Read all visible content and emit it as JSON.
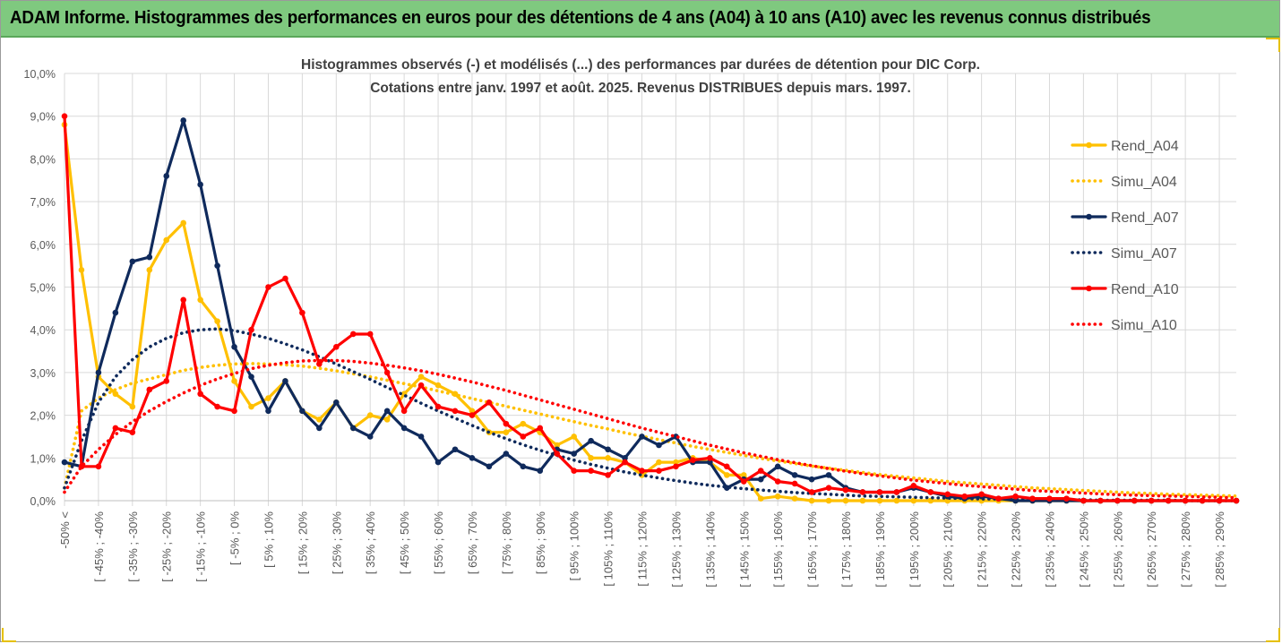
{
  "window": {
    "title": "ADAM Informe. Histogrammes des performances en euros pour des détentions de 4 ans (A04) à 10 ans (A10) avec les revenus connus distribués"
  },
  "chart_data": {
    "type": "line",
    "title": "Histogrammes observés (-) et modélisés (...) des performances par durées de détention pour DIC Corp.",
    "subtitle": "Cotations entre janv. 1997 et août. 2025. Revenus DISTRIBUES depuis mars. 1997.",
    "xlabel": "",
    "ylabel": "",
    "ylim": [
      0,
      10
    ],
    "yticks": [
      "0,0%",
      "1,0%",
      "2,0%",
      "3,0%",
      "4,0%",
      "5,0%",
      "6,0%",
      "7,0%",
      "8,0%",
      "9,0%",
      "10,0%"
    ],
    "grid": true,
    "legend_position": "right",
    "x_labels": [
      "-50% <",
      "[ -45% ; -40%",
      "[ -35% ; -30%",
      "[ -25% ; -20%",
      "[ -15% ; -10%",
      "[ -5% ; 0%",
      "[ 5% ; 10%",
      "[ 15% ; 20%",
      "[ 25% ; 30%",
      "[ 35% ; 40%",
      "[ 45% ; 50%",
      "[ 55% ; 60%",
      "[ 65% ; 70%",
      "[ 75% ; 80%",
      "[ 85% ; 90%",
      "[ 95% ; 100%",
      "[ 105% ; 110%",
      "[ 115% ; 120%",
      "[ 125% ; 130%",
      "[ 135% ; 140%",
      "[ 145% ; 150%",
      "[ 155% ; 160%",
      "[ 165% ; 170%",
      "[ 175% ; 180%",
      "[ 185% ; 190%",
      "[ 195% ; 200%",
      "[ 205% ; 210%",
      "[ 215% ; 220%",
      "[ 225% ; 230%",
      "[ 235% ; 240%",
      "[ 245% ; 250%",
      "[ 255% ; 260%",
      "[ 265% ; 270%",
      "[ 275% ; 280%",
      "[ 285% ; 290%"
    ],
    "bins": 70,
    "series": [
      {
        "name": "Rend_A04",
        "color": "#ffc000",
        "style": "solid",
        "markers": true,
        "values": [
          8.8,
          5.4,
          2.9,
          2.5,
          2.2,
          5.4,
          6.1,
          6.5,
          4.7,
          4.2,
          2.8,
          2.2,
          2.4,
          2.8,
          2.1,
          1.9,
          2.3,
          1.7,
          2.0,
          1.9,
          2.5,
          2.9,
          2.7,
          2.5,
          2.1,
          1.6,
          1.6,
          1.8,
          1.6,
          1.3,
          1.5,
          1.0,
          1.0,
          0.9,
          0.6,
          0.9,
          0.9,
          1.0,
          0.9,
          0.6,
          0.6,
          0.05,
          0.1,
          0.05,
          0,
          0,
          0,
          0,
          0,
          0,
          0,
          0,
          0,
          0,
          0,
          0,
          0,
          0,
          0,
          0,
          0,
          0,
          0,
          0,
          0,
          0,
          0,
          0,
          0,
          0
        ]
      },
      {
        "name": "Simu_A04",
        "color": "#ffc000",
        "style": "dotted",
        "markers": false,
        "values": [
          0.3,
          2.1,
          2.4,
          2.6,
          2.75,
          2.85,
          2.95,
          3.05,
          3.12,
          3.17,
          3.2,
          3.21,
          3.2,
          3.18,
          3.15,
          3.1,
          3.04,
          2.97,
          2.9,
          2.82,
          2.74,
          2.66,
          2.57,
          2.48,
          2.39,
          2.3,
          2.21,
          2.12,
          2.03,
          1.94,
          1.85,
          1.76,
          1.68,
          1.59,
          1.51,
          1.43,
          1.35,
          1.27,
          1.2,
          1.13,
          1.06,
          0.99,
          0.93,
          0.87,
          0.81,
          0.76,
          0.71,
          0.66,
          0.61,
          0.57,
          0.53,
          0.49,
          0.45,
          0.42,
          0.39,
          0.36,
          0.33,
          0.3,
          0.28,
          0.26,
          0.24,
          0.22,
          0.2,
          0.18,
          0.17,
          0.15,
          0.14,
          0.13,
          0.12,
          0.11
        ]
      },
      {
        "name": "Rend_A07",
        "color": "#0f2a5c",
        "style": "solid",
        "markers": true,
        "values": [
          0.9,
          0.8,
          3.0,
          4.4,
          5.6,
          5.7,
          7.6,
          8.9,
          7.4,
          5.5,
          3.6,
          2.9,
          2.1,
          2.8,
          2.1,
          1.7,
          2.3,
          1.7,
          1.5,
          2.1,
          1.7,
          1.5,
          0.9,
          1.2,
          1.0,
          0.8,
          1.1,
          0.8,
          0.7,
          1.2,
          1.1,
          1.4,
          1.2,
          1.0,
          1.5,
          1.3,
          1.5,
          0.9,
          0.9,
          0.3,
          0.5,
          0.5,
          0.8,
          0.6,
          0.5,
          0.6,
          0.3,
          0.2,
          0.2,
          0.2,
          0.3,
          0.2,
          0.1,
          0.05,
          0.1,
          0.05,
          0,
          0,
          0,
          0,
          0,
          0,
          0,
          0,
          0,
          0,
          0,
          0,
          0,
          0
        ]
      },
      {
        "name": "Simu_A07",
        "color": "#0f2a5c",
        "style": "dotted",
        "markers": false,
        "values": [
          0.3,
          1.4,
          2.3,
          2.9,
          3.3,
          3.6,
          3.8,
          3.93,
          4.0,
          4.02,
          3.98,
          3.9,
          3.8,
          3.67,
          3.53,
          3.37,
          3.2,
          3.02,
          2.84,
          2.65,
          2.47,
          2.28,
          2.1,
          1.93,
          1.76,
          1.6,
          1.45,
          1.31,
          1.18,
          1.06,
          0.95,
          0.85,
          0.76,
          0.67,
          0.6,
          0.53,
          0.47,
          0.41,
          0.36,
          0.32,
          0.28,
          0.25,
          0.22,
          0.19,
          0.17,
          0.15,
          0.13,
          0.11,
          0.1,
          0.09,
          0.08,
          0.07,
          0.06,
          0.05,
          0.04,
          0.04,
          0.03,
          0.03,
          0.02,
          0.02,
          0.02,
          0.01,
          0.01,
          0.01,
          0.01,
          0.01,
          0,
          0,
          0,
          0
        ]
      },
      {
        "name": "Rend_A10",
        "color": "#ff0000",
        "style": "solid",
        "markers": true,
        "values": [
          9.0,
          0.8,
          0.8,
          1.7,
          1.6,
          2.6,
          2.8,
          4.7,
          2.5,
          2.2,
          2.1,
          4.0,
          5.0,
          5.2,
          4.4,
          3.2,
          3.6,
          3.9,
          3.9,
          3.0,
          2.1,
          2.7,
          2.2,
          2.1,
          2.0,
          2.3,
          1.8,
          1.5,
          1.7,
          1.1,
          0.7,
          0.7,
          0.6,
          0.9,
          0.7,
          0.7,
          0.8,
          0.95,
          1.0,
          0.8,
          0.45,
          0.7,
          0.45,
          0.4,
          0.2,
          0.3,
          0.25,
          0.2,
          0.2,
          0.2,
          0.35,
          0.2,
          0.15,
          0.1,
          0.15,
          0.05,
          0.1,
          0.05,
          0.05,
          0.05,
          0,
          0,
          0,
          0,
          0,
          0,
          0,
          0,
          0,
          0
        ]
      },
      {
        "name": "Simu_A10",
        "color": "#ff0000",
        "style": "dotted",
        "markers": false,
        "values": [
          0.2,
          0.8,
          1.2,
          1.55,
          1.85,
          2.1,
          2.32,
          2.52,
          2.7,
          2.85,
          2.98,
          3.09,
          3.17,
          3.23,
          3.27,
          3.28,
          3.28,
          3.26,
          3.22,
          3.17,
          3.11,
          3.04,
          2.96,
          2.87,
          2.78,
          2.68,
          2.58,
          2.47,
          2.36,
          2.25,
          2.14,
          2.03,
          1.92,
          1.81,
          1.7,
          1.6,
          1.5,
          1.4,
          1.3,
          1.21,
          1.12,
          1.04,
          0.96,
          0.89,
          0.82,
          0.75,
          0.69,
          0.63,
          0.58,
          0.53,
          0.48,
          0.44,
          0.4,
          0.36,
          0.33,
          0.3,
          0.27,
          0.24,
          0.22,
          0.2,
          0.18,
          0.16,
          0.14,
          0.13,
          0.12,
          0.11,
          0.1,
          0.09,
          0.08,
          0.07
        ]
      }
    ]
  }
}
